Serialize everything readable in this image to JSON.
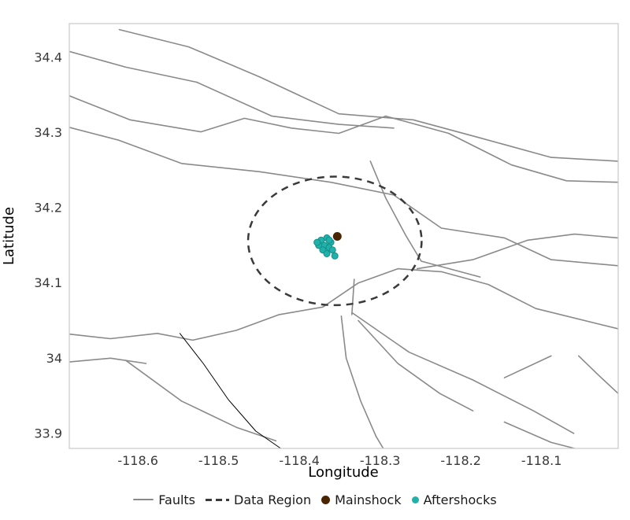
{
  "chart_data": {
    "type": "scatter",
    "title": "",
    "xlabel": "Longitude",
    "ylabel": "Latitude",
    "xlim": [
      -118.685,
      -118.005
    ],
    "ylim": [
      33.88,
      34.445
    ],
    "grid": false,
    "xticks": {
      "values": [
        -118.6,
        -118.5,
        -118.4,
        -118.3,
        -118.2,
        -118.1
      ],
      "labels": [
        "-118.6",
        "-118.5",
        "-118.4",
        "-118.3",
        "-118.2",
        "-118.1"
      ]
    },
    "yticks": {
      "values": [
        33.9,
        34.0,
        34.1,
        34.2,
        34.3,
        34.4
      ],
      "labels": [
        "33.9",
        "34",
        "34.1",
        "34.2",
        "34.3",
        "34.4"
      ]
    },
    "colors": {
      "fault": "#8a8a8a",
      "fault_minor": "#000000",
      "data_region": "#3a3a3a",
      "mainshock": "#4a2500",
      "aftershock": "#20b2aa",
      "aftershock_edge": "#148f8a",
      "spine": "#cccccc",
      "tick_label": "#3a3a3a",
      "axis_label": "#000000",
      "background": "#ffffff"
    },
    "legend": {
      "position": "bottom-center",
      "entries": [
        {
          "label": "Faults",
          "marker": "line"
        },
        {
          "label": "Data Region",
          "marker": "dashed-line"
        },
        {
          "label": "Mainshock",
          "marker": "dot"
        },
        {
          "label": "Aftershocks",
          "marker": "dot"
        }
      ]
    },
    "data_region": {
      "center": [
        -118.356,
        34.156
      ],
      "rx": 0.1075,
      "ry": 0.0855,
      "dash": [
        9,
        7
      ],
      "stroke_width": 2.5
    },
    "mainshock": {
      "lon": -118.353,
      "lat": 34.162,
      "size": 11
    },
    "aftershocks": {
      "size": 8,
      "points": [
        [
          -118.373,
          34.157
        ],
        [
          -118.366,
          34.16
        ],
        [
          -118.361,
          34.154
        ],
        [
          -118.369,
          34.15
        ],
        [
          -118.376,
          34.15
        ],
        [
          -118.363,
          34.147
        ],
        [
          -118.371,
          34.144
        ],
        [
          -118.359,
          34.144
        ],
        [
          -118.366,
          34.139
        ],
        [
          -118.356,
          34.136
        ],
        [
          -118.378,
          34.154
        ],
        [
          -118.363,
          34.157
        ]
      ]
    },
    "faults": [
      {
        "width": 1.6,
        "points": [
          [
            -118.623,
            34.437
          ],
          [
            -118.537,
            34.414
          ],
          [
            -118.449,
            34.374
          ],
          [
            -118.351,
            34.325
          ],
          [
            -118.259,
            34.317
          ],
          [
            -118.176,
            34.293
          ],
          [
            -118.088,
            34.267
          ],
          [
            -118.005,
            34.262
          ]
        ]
      },
      {
        "width": 1.6,
        "points": [
          [
            -118.685,
            34.408
          ],
          [
            -118.615,
            34.387
          ],
          [
            -118.527,
            34.367
          ],
          [
            -118.434,
            34.322
          ],
          [
            -118.351,
            34.311
          ],
          [
            -118.283,
            34.306
          ]
        ]
      },
      {
        "width": 1.6,
        "points": [
          [
            -118.685,
            34.349
          ],
          [
            -118.61,
            34.317
          ],
          [
            -118.522,
            34.301
          ],
          [
            -118.468,
            34.319
          ],
          [
            -118.41,
            34.306
          ],
          [
            -118.351,
            34.299
          ],
          [
            -118.293,
            34.322
          ]
        ]
      },
      {
        "width": 1.6,
        "points": [
          [
            -118.293,
            34.322
          ],
          [
            -118.215,
            34.299
          ],
          [
            -118.137,
            34.257
          ],
          [
            -118.069,
            34.236
          ],
          [
            -118.005,
            34.234
          ]
        ]
      },
      {
        "width": 1.6,
        "points": [
          [
            -118.685,
            34.307
          ],
          [
            -118.624,
            34.29
          ],
          [
            -118.546,
            34.259
          ],
          [
            -118.449,
            34.248
          ],
          [
            -118.361,
            34.234
          ],
          [
            -118.283,
            34.217
          ],
          [
            -118.224,
            34.173
          ],
          [
            -118.146,
            34.16
          ],
          [
            -118.088,
            34.131
          ],
          [
            -118.005,
            34.123
          ]
        ]
      },
      {
        "width": 1.6,
        "points": [
          [
            -118.312,
            34.262
          ],
          [
            -118.293,
            34.213
          ],
          [
            -118.268,
            34.163
          ],
          [
            -118.249,
            34.129
          ],
          [
            -118.176,
            34.108
          ]
        ]
      },
      {
        "width": 1.6,
        "points": [
          [
            -118.685,
            34.032
          ],
          [
            -118.634,
            34.026
          ],
          [
            -118.576,
            34.033
          ],
          [
            -118.532,
            34.024
          ],
          [
            -118.478,
            34.037
          ],
          [
            -118.425,
            34.058
          ],
          [
            -118.371,
            34.068
          ],
          [
            -118.327,
            34.1
          ],
          [
            -118.278,
            34.119
          ],
          [
            -118.224,
            34.115
          ],
          [
            -118.166,
            34.098
          ],
          [
            -118.107,
            34.066
          ],
          [
            -118.005,
            34.039
          ]
        ]
      },
      {
        "width": 1.6,
        "points": [
          [
            -118.254,
            34.119
          ],
          [
            -118.185,
            34.131
          ],
          [
            -118.117,
            34.157
          ],
          [
            -118.059,
            34.165
          ],
          [
            -118.005,
            34.16
          ]
        ]
      },
      {
        "width": 1.6,
        "points": [
          [
            -118.685,
            33.995
          ],
          [
            -118.634,
            34.0
          ],
          [
            -118.59,
            33.993
          ]
        ]
      },
      {
        "width": 1.6,
        "points": [
          [
            -118.615,
            33.997
          ],
          [
            -118.546,
            33.943
          ],
          [
            -118.478,
            33.908
          ],
          [
            -118.429,
            33.89
          ]
        ]
      },
      {
        "width": 1.0,
        "style": "minor",
        "points": [
          [
            -118.548,
            34.033
          ],
          [
            -118.519,
            33.993
          ],
          [
            -118.488,
            33.945
          ],
          [
            -118.454,
            33.903
          ],
          [
            -118.423,
            33.88
          ]
        ]
      },
      {
        "width": 1.6,
        "points": [
          [
            -118.334,
            34.06
          ],
          [
            -118.264,
            34.008
          ],
          [
            -118.185,
            33.971
          ],
          [
            -118.11,
            33.93
          ],
          [
            -118.06,
            33.9
          ]
        ]
      },
      {
        "width": 1.6,
        "points": [
          [
            -118.327,
            34.05
          ],
          [
            -118.278,
            33.993
          ],
          [
            -118.226,
            33.953
          ],
          [
            -118.185,
            33.93
          ]
        ]
      },
      {
        "width": 1.6,
        "points": [
          [
            -118.348,
            34.056
          ],
          [
            -118.342,
            34.0
          ],
          [
            -118.324,
            33.943
          ],
          [
            -118.305,
            33.896
          ],
          [
            -118.296,
            33.88
          ]
        ]
      },
      {
        "width": 1.6,
        "points": [
          [
            -118.332,
            34.105
          ],
          [
            -118.335,
            34.058
          ]
        ]
      },
      {
        "width": 1.6,
        "points": [
          [
            -118.146,
            33.915
          ],
          [
            -118.088,
            33.888
          ],
          [
            -118.059,
            33.88
          ]
        ]
      },
      {
        "width": 1.6,
        "points": [
          [
            -118.054,
            34.003
          ],
          [
            -118.028,
            33.976
          ],
          [
            -118.005,
            33.953
          ]
        ]
      },
      {
        "width": 1.6,
        "points": [
          [
            -118.146,
            33.974
          ],
          [
            -118.088,
            34.003
          ]
        ]
      }
    ]
  }
}
